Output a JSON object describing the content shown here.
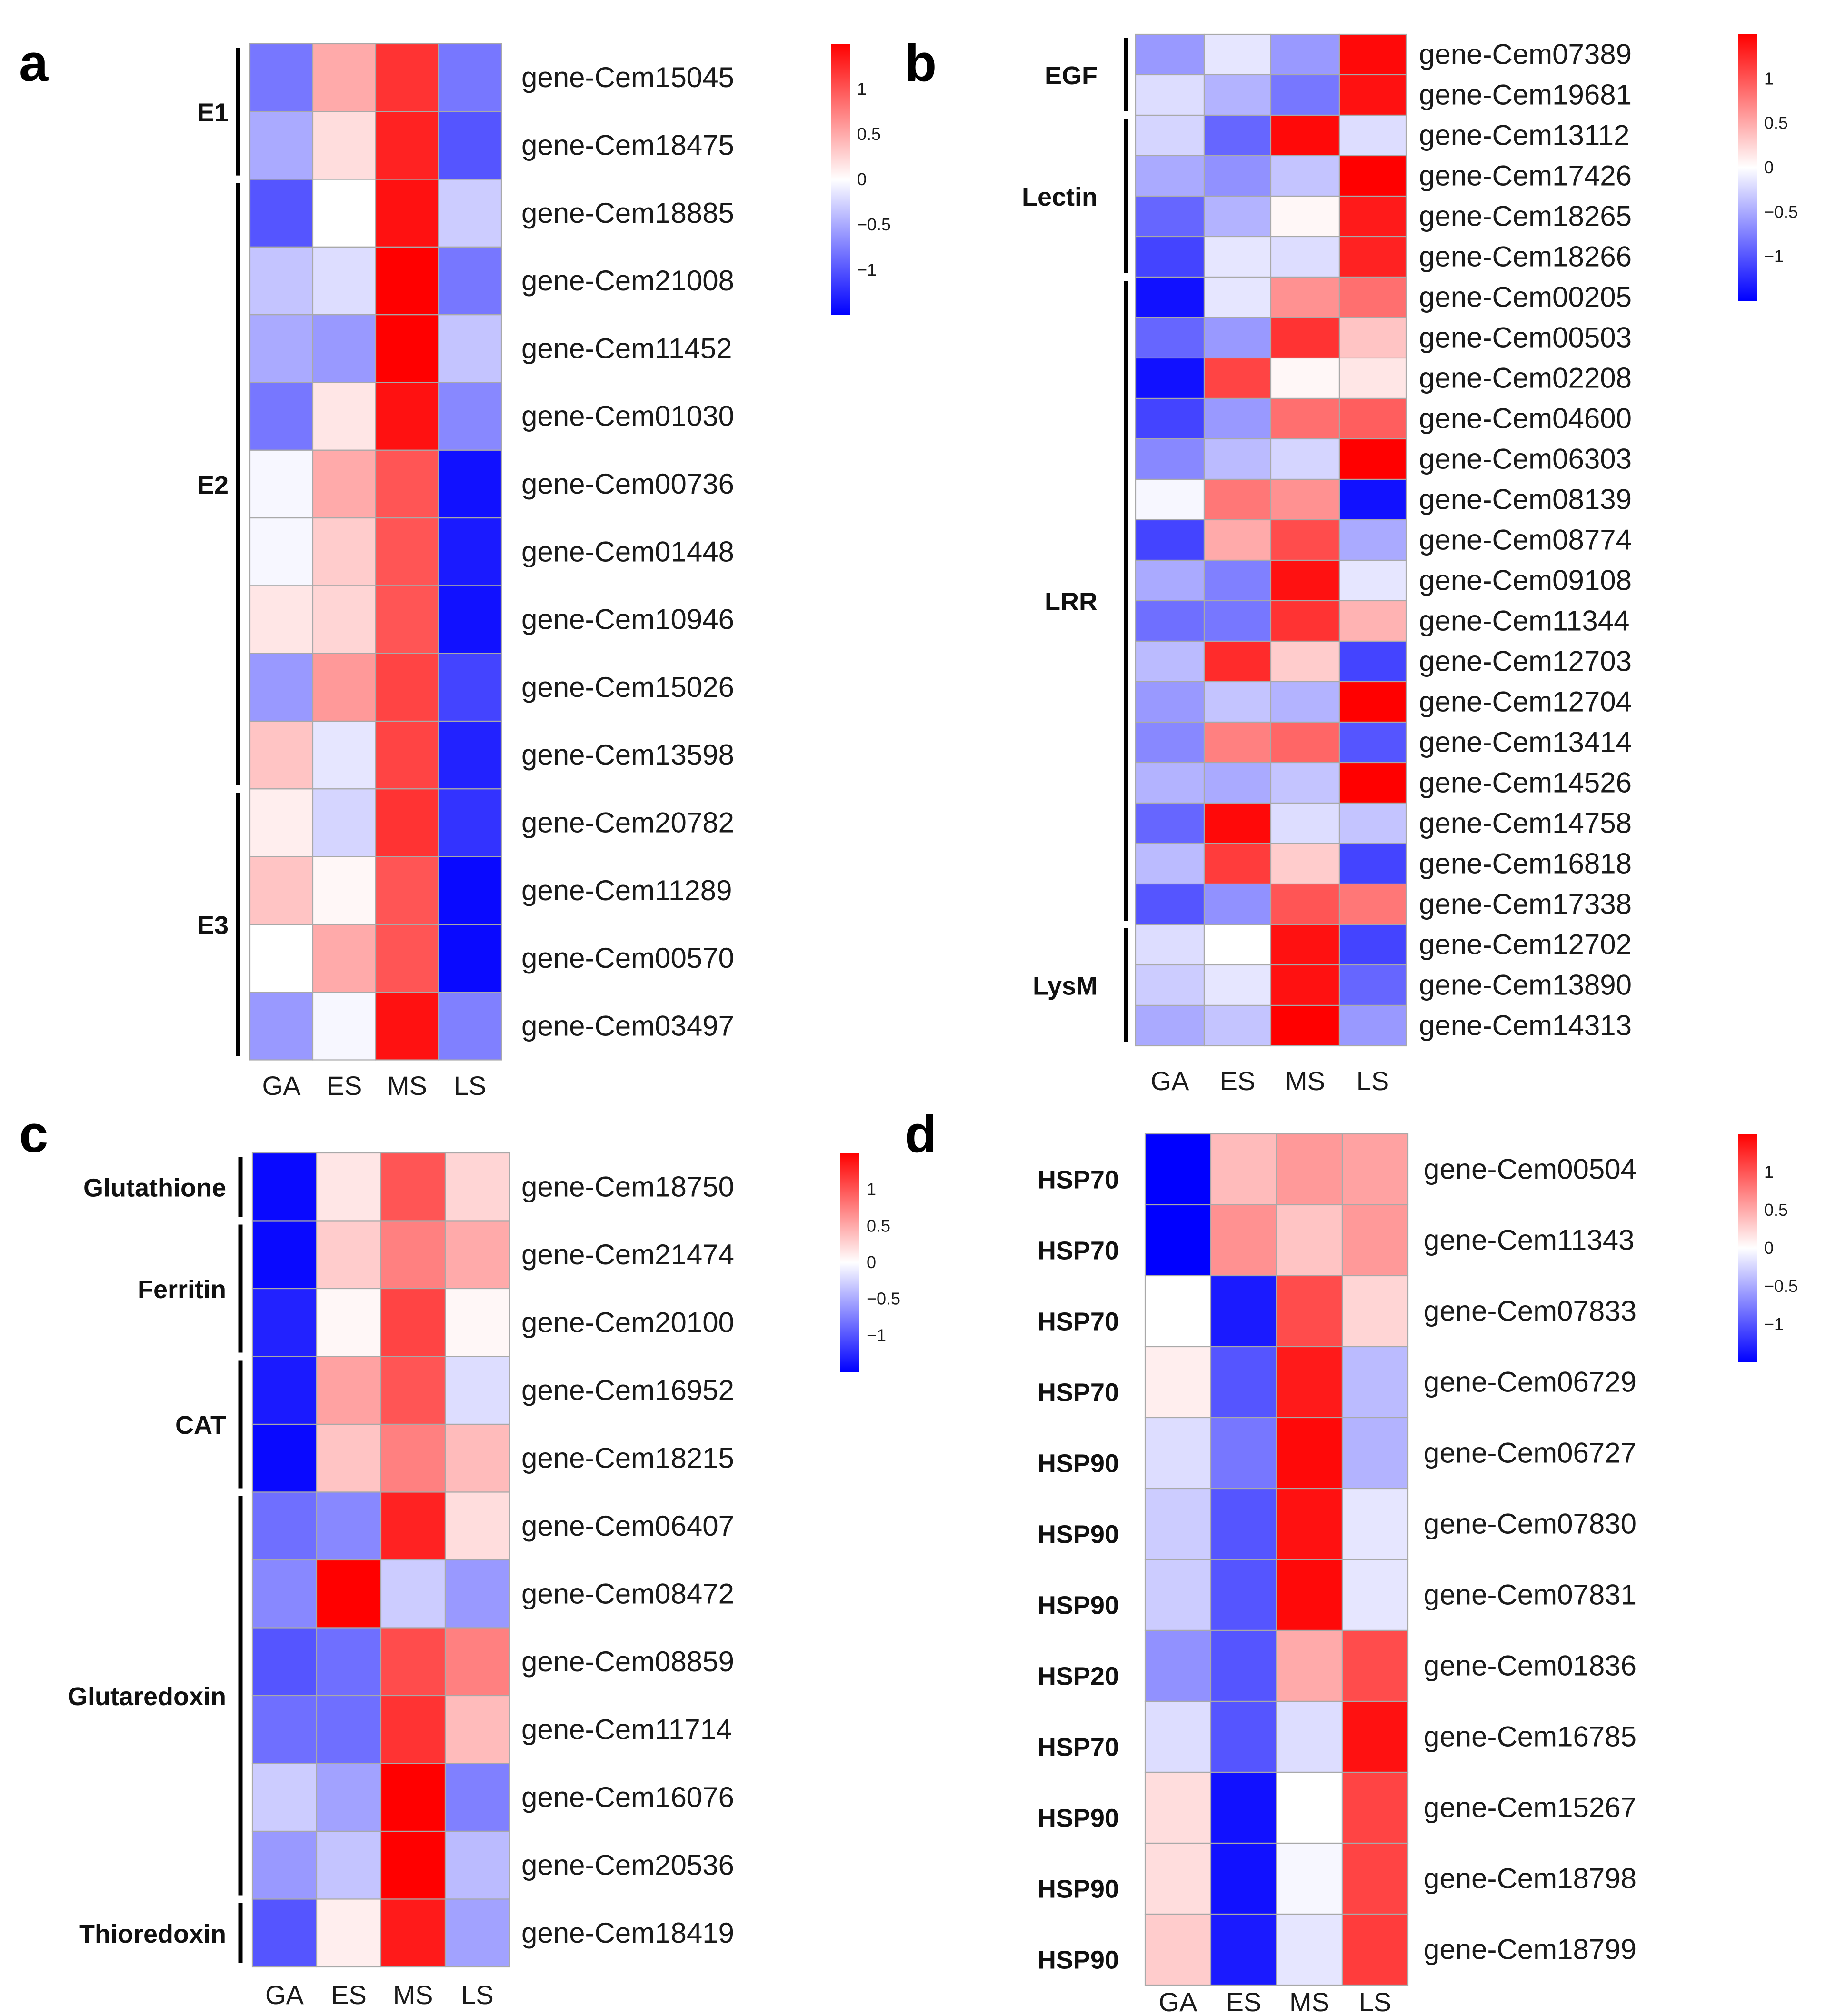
{
  "colors": {
    "low": "#0000ff",
    "mid": "#ffffff",
    "high": "#ff0000",
    "cell_border": "#a9a9a9",
    "bracket": "#000000"
  },
  "chart_data": [
    {
      "panel": "a",
      "type": "heatmap",
      "columns": [
        "GA",
        "ES",
        "MS",
        "LS"
      ],
      "color_scale": {
        "min": -1.5,
        "max": 1.5,
        "ticks": [
          "1",
          "0.5",
          "0",
          "−0.5",
          "−1"
        ]
      },
      "groups": [
        {
          "label": "E1",
          "rows": [
            0,
            1
          ]
        },
        {
          "label": "E2",
          "rows": [
            2,
            10
          ]
        },
        {
          "label": "E3",
          "rows": [
            11,
            14
          ]
        }
      ],
      "rows": [
        {
          "gene": "gene-Cem15045",
          "values": [
            -0.8,
            0.5,
            1.2,
            -0.8
          ]
        },
        {
          "gene": "gene-Cem18475",
          "values": [
            -0.5,
            0.2,
            1.3,
            -1.0
          ]
        },
        {
          "gene": "gene-Cem18885",
          "values": [
            -1.0,
            0.0,
            1.4,
            -0.3
          ]
        },
        {
          "gene": "gene-Cem21008",
          "values": [
            -0.35,
            -0.2,
            1.5,
            -0.8
          ]
        },
        {
          "gene": "gene-Cem11452",
          "values": [
            -0.5,
            -0.6,
            1.5,
            -0.35
          ]
        },
        {
          "gene": "gene-Cem01030",
          "values": [
            -0.8,
            0.15,
            1.4,
            -0.7
          ]
        },
        {
          "gene": "gene-Cem00736",
          "values": [
            -0.05,
            0.5,
            1.0,
            -1.4
          ]
        },
        {
          "gene": "gene-Cem01448",
          "values": [
            -0.05,
            0.3,
            1.0,
            -1.35
          ]
        },
        {
          "gene": "gene-Cem10946",
          "values": [
            0.15,
            0.25,
            1.0,
            -1.4
          ]
        },
        {
          "gene": "gene-Cem15026",
          "values": [
            -0.6,
            0.6,
            1.1,
            -1.1
          ]
        },
        {
          "gene": "gene-Cem13598",
          "values": [
            0.35,
            -0.15,
            1.1,
            -1.3
          ]
        },
        {
          "gene": "gene-Cem20782",
          "values": [
            0.1,
            -0.25,
            1.2,
            -1.2
          ]
        },
        {
          "gene": "gene-Cem11289",
          "values": [
            0.35,
            0.05,
            1.0,
            -1.45
          ]
        },
        {
          "gene": "gene-Cem00570",
          "values": [
            0.0,
            0.5,
            1.0,
            -1.45
          ]
        },
        {
          "gene": "gene-Cem03497",
          "values": [
            -0.6,
            -0.05,
            1.4,
            -0.75
          ]
        }
      ]
    },
    {
      "panel": "b",
      "type": "heatmap",
      "columns": [
        "GA",
        "ES",
        "MS",
        "LS"
      ],
      "color_scale": {
        "min": -1.5,
        "max": 1.5,
        "ticks": [
          "1",
          "0.5",
          "0",
          "−0.5",
          "−1"
        ]
      },
      "groups": [
        {
          "label": "EGF",
          "rows": [
            0,
            1
          ]
        },
        {
          "label": "Lectin",
          "rows": [
            2,
            5
          ]
        },
        {
          "label": "LRR",
          "rows": [
            6,
            21
          ]
        },
        {
          "label": "LysM",
          "rows": [
            22,
            24
          ]
        }
      ],
      "rows": [
        {
          "gene": "gene-Cem07389",
          "values": [
            -0.6,
            -0.15,
            -0.6,
            1.45
          ]
        },
        {
          "gene": "gene-Cem19681",
          "values": [
            -0.2,
            -0.45,
            -0.8,
            1.4
          ]
        },
        {
          "gene": "gene-Cem13112",
          "values": [
            -0.25,
            -0.9,
            1.45,
            -0.2
          ]
        },
        {
          "gene": "gene-Cem17426",
          "values": [
            -0.5,
            -0.65,
            -0.35,
            1.5
          ]
        },
        {
          "gene": "gene-Cem18265",
          "values": [
            -0.9,
            -0.45,
            0.05,
            1.35
          ]
        },
        {
          "gene": "gene-Cem18266",
          "values": [
            -1.1,
            -0.15,
            -0.2,
            1.3
          ]
        },
        {
          "gene": "gene-Cem00205",
          "values": [
            -1.4,
            -0.15,
            0.65,
            0.85
          ]
        },
        {
          "gene": "gene-Cem00503",
          "values": [
            -0.9,
            -0.6,
            1.2,
            0.35
          ]
        },
        {
          "gene": "gene-Cem02208",
          "values": [
            -1.4,
            1.1,
            0.05,
            0.15
          ]
        },
        {
          "gene": "gene-Cem04600",
          "values": [
            -1.1,
            -0.6,
            0.85,
            0.95
          ]
        },
        {
          "gene": "gene-Cem06303",
          "values": [
            -0.7,
            -0.4,
            -0.25,
            1.5
          ]
        },
        {
          "gene": "gene-Cem08139",
          "values": [
            -0.05,
            0.8,
            0.65,
            -1.4
          ]
        },
        {
          "gene": "gene-Cem08774",
          "values": [
            -1.1,
            0.5,
            1.05,
            -0.5
          ]
        },
        {
          "gene": "gene-Cem09108",
          "values": [
            -0.5,
            -0.75,
            1.4,
            -0.15
          ]
        },
        {
          "gene": "gene-Cem11344",
          "values": [
            -0.85,
            -0.8,
            1.2,
            0.45
          ]
        },
        {
          "gene": "gene-Cem12703",
          "values": [
            -0.4,
            1.25,
            0.3,
            -1.1
          ]
        },
        {
          "gene": "gene-Cem12704",
          "values": [
            -0.6,
            -0.35,
            -0.45,
            1.5
          ]
        },
        {
          "gene": "gene-Cem13414",
          "values": [
            -0.7,
            0.75,
            0.9,
            -1.0
          ]
        },
        {
          "gene": "gene-Cem14526",
          "values": [
            -0.45,
            -0.5,
            -0.35,
            1.5
          ]
        },
        {
          "gene": "gene-Cem14758",
          "values": [
            -0.9,
            1.45,
            -0.2,
            -0.35
          ]
        },
        {
          "gene": "gene-Cem16818",
          "values": [
            -0.4,
            1.15,
            0.3,
            -1.1
          ]
        },
        {
          "gene": "gene-Cem17338",
          "values": [
            -1.0,
            -0.65,
            1.0,
            0.8
          ]
        },
        {
          "gene": "gene-Cem12702",
          "values": [
            -0.2,
            0.0,
            1.4,
            -1.1
          ]
        },
        {
          "gene": "gene-Cem13890",
          "values": [
            -0.3,
            -0.15,
            1.4,
            -0.9
          ]
        },
        {
          "gene": "gene-Cem14313",
          "values": [
            -0.5,
            -0.35,
            1.5,
            -0.6
          ]
        }
      ]
    },
    {
      "panel": "c",
      "type": "heatmap",
      "columns": [
        "GA",
        "ES",
        "MS",
        "LS"
      ],
      "color_scale": {
        "min": -1.5,
        "max": 1.5,
        "ticks": [
          "1",
          "0.5",
          "0",
          "−0.5",
          "−1"
        ]
      },
      "groups": [
        {
          "label": "Glutathione",
          "rows": [
            0,
            0
          ]
        },
        {
          "label": "Ferritin",
          "rows": [
            1,
            2
          ]
        },
        {
          "label": "CAT",
          "rows": [
            3,
            4
          ]
        },
        {
          "label": "Glutaredoxin",
          "rows": [
            5,
            10
          ]
        },
        {
          "label": "Thioredoxin",
          "rows": [
            11,
            11
          ]
        }
      ],
      "rows": [
        {
          "gene": "gene-Cem18750",
          "values": [
            -1.45,
            0.15,
            1.0,
            0.25
          ]
        },
        {
          "gene": "gene-Cem21474",
          "values": [
            -1.45,
            0.3,
            0.75,
            0.5
          ]
        },
        {
          "gene": "gene-Cem20100",
          "values": [
            -1.3,
            0.05,
            1.1,
            0.05
          ]
        },
        {
          "gene": "gene-Cem16952",
          "values": [
            -1.35,
            0.55,
            1.0,
            -0.2
          ]
        },
        {
          "gene": "gene-Cem18215",
          "values": [
            -1.45,
            0.35,
            0.75,
            0.4
          ]
        },
        {
          "gene": "gene-Cem06407",
          "values": [
            -0.85,
            -0.7,
            1.3,
            0.2
          ]
        },
        {
          "gene": "gene-Cem08472",
          "values": [
            -0.7,
            1.5,
            -0.3,
            -0.6
          ]
        },
        {
          "gene": "gene-Cem08859",
          "values": [
            -1.0,
            -0.85,
            1.05,
            0.75
          ]
        },
        {
          "gene": "gene-Cem11714",
          "values": [
            -0.85,
            -0.85,
            1.2,
            0.4
          ]
        },
        {
          "gene": "gene-Cem16076",
          "values": [
            -0.3,
            -0.55,
            1.5,
            -0.75
          ]
        },
        {
          "gene": "gene-Cem20536",
          "values": [
            -0.6,
            -0.35,
            1.5,
            -0.4
          ]
        },
        {
          "gene": "gene-Cem18419",
          "values": [
            -1.0,
            0.1,
            1.35,
            -0.55
          ]
        }
      ]
    },
    {
      "panel": "d",
      "type": "heatmap",
      "columns": [
        "GA",
        "ES",
        "MS",
        "LS"
      ],
      "color_scale": {
        "min": -1.5,
        "max": 1.5,
        "ticks": [
          "1",
          "0.5",
          "0",
          "−0.5",
          "−1"
        ]
      },
      "groups": [],
      "rows": [
        {
          "family": "HSP70",
          "gene": "gene-Cem00504",
          "values": [
            -1.5,
            0.4,
            0.6,
            0.55
          ]
        },
        {
          "family": "HSP70",
          "gene": "gene-Cem11343",
          "values": [
            -1.5,
            0.65,
            0.35,
            0.6
          ]
        },
        {
          "family": "HSP70",
          "gene": "gene-Cem07833",
          "values": [
            0.0,
            -1.35,
            1.05,
            0.25
          ]
        },
        {
          "family": "HSP70",
          "gene": "gene-Cem06729",
          "values": [
            0.1,
            -1.0,
            1.35,
            -0.4
          ]
        },
        {
          "family": "HSP90",
          "gene": "gene-Cem06727",
          "values": [
            -0.2,
            -0.8,
            1.45,
            -0.45
          ]
        },
        {
          "family": "HSP90",
          "gene": "gene-Cem07830",
          "values": [
            -0.3,
            -1.0,
            1.4,
            -0.15
          ]
        },
        {
          "family": "HSP90",
          "gene": "gene-Cem07831",
          "values": [
            -0.3,
            -1.0,
            1.45,
            -0.15
          ]
        },
        {
          "family": "HSP20",
          "gene": "gene-Cem01836",
          "values": [
            -0.65,
            -1.0,
            0.5,
            1.05
          ]
        },
        {
          "family": "HSP70",
          "gene": "gene-Cem16785",
          "values": [
            -0.2,
            -1.0,
            -0.2,
            1.4
          ]
        },
        {
          "family": "HSP90",
          "gene": "gene-Cem15267",
          "values": [
            0.2,
            -1.4,
            0.0,
            1.1
          ]
        },
        {
          "family": "HSP90",
          "gene": "gene-Cem18798",
          "values": [
            0.2,
            -1.4,
            -0.05,
            1.1
          ]
        },
        {
          "family": "HSP90",
          "gene": "gene-Cem18799",
          "values": [
            0.3,
            -1.35,
            -0.15,
            1.15
          ]
        }
      ]
    }
  ]
}
